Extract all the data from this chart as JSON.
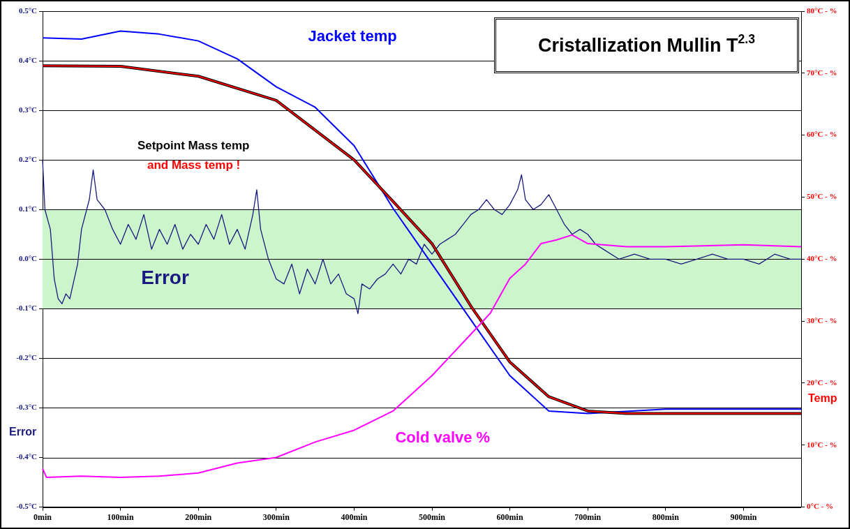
{
  "chart_data": {
    "type": "line",
    "title": "Cristallization Mullin T$^{2.3}$",
    "ylabel": "Error",
    "y2label": "Temp",
    "xlim": [
      0,
      974
    ],
    "xticks": [
      {
        "value": 0,
        "label": "0min"
      },
      {
        "value": 100,
        "label": "100min"
      },
      {
        "value": 200,
        "label": "200min"
      },
      {
        "value": 300,
        "label": "300min"
      },
      {
        "value": 400,
        "label": "400min"
      },
      {
        "value": 500,
        "label": "500min"
      },
      {
        "value": 600,
        "label": "600min"
      },
      {
        "value": 700,
        "label": "700min"
      },
      {
        "value": 800,
        "label": "800min"
      },
      {
        "value": 900,
        "label": "900min"
      }
    ],
    "ylim": [
      -0.5,
      0.5
    ],
    "yticks": [
      {
        "value": -0.5,
        "label": "-0.5°C"
      },
      {
        "value": -0.4,
        "label": "-0.4°C"
      },
      {
        "value": -0.3,
        "label": "-0.3°C"
      },
      {
        "value": -0.2,
        "label": "-0.2°C"
      },
      {
        "value": -0.1,
        "label": "-0.1°C"
      },
      {
        "value": 0,
        "label": "0.0°C"
      },
      {
        "value": 0.1,
        "label": "0.1°C"
      },
      {
        "value": 0.2,
        "label": "0.2°C"
      },
      {
        "value": 0.3,
        "label": "0.3°C"
      },
      {
        "value": 0.4,
        "label": "0.4°C"
      },
      {
        "value": 0.5,
        "label": "0.5°C"
      }
    ],
    "y2lim": [
      0,
      80
    ],
    "y2ticks": [
      {
        "value": 0,
        "label": "0°C - %"
      },
      {
        "value": 10,
        "label": "10°C - %"
      },
      {
        "value": 20,
        "label": "20°C - %"
      },
      {
        "value": 30,
        "label": "30°C - %"
      },
      {
        "value": 40,
        "label": "40°C - %"
      },
      {
        "value": 50,
        "label": "50°C - %"
      },
      {
        "value": 60,
        "label": "60°C - %"
      },
      {
        "value": 70,
        "label": "70°C - %"
      },
      {
        "value": 80,
        "label": "80°C - %"
      }
    ],
    "grid": "y",
    "legend": false,
    "marker": "none",
    "line_style": "solid",
    "bands": [
      {
        "axis": "y",
        "from": -0.1,
        "to": 0.1,
        "color": "#ccf5cc"
      }
    ],
    "series": [
      {
        "name": "Error",
        "color": "#1a1a80",
        "axis": "y",
        "x": [
          0,
          3,
          10,
          15,
          20,
          25,
          30,
          35,
          45,
          50,
          60,
          65,
          70,
          80,
          90,
          100,
          110,
          120,
          130,
          140,
          150,
          160,
          170,
          180,
          190,
          200,
          210,
          220,
          230,
          240,
          250,
          260,
          270,
          275,
          280,
          290,
          300,
          310,
          320,
          330,
          340,
          350,
          360,
          370,
          380,
          390,
          400,
          405,
          410,
          420,
          430,
          440,
          450,
          460,
          470,
          480,
          490,
          500,
          510,
          520,
          530,
          540,
          550,
          560,
          570,
          580,
          590,
          600,
          610,
          615,
          620,
          630,
          640,
          650,
          660,
          670,
          680,
          690,
          700,
          710,
          720,
          740,
          760,
          780,
          800,
          820,
          840,
          860,
          880,
          900,
          920,
          940,
          960,
          974
        ],
        "values": [
          0.2,
          0.1,
          0.06,
          -0.04,
          -0.08,
          -0.09,
          -0.07,
          -0.08,
          -0.01,
          0.06,
          0.12,
          0.18,
          0.12,
          0.1,
          0.06,
          0.03,
          0.07,
          0.04,
          0.09,
          0.02,
          0.06,
          0.03,
          0.07,
          0.02,
          0.05,
          0.03,
          0.07,
          0.04,
          0.09,
          0.03,
          0.06,
          0.02,
          0.09,
          0.14,
          0.06,
          0,
          -0.04,
          -0.05,
          -0.01,
          -0.07,
          -0.02,
          -0.05,
          0,
          -0.05,
          -0.03,
          -0.07,
          -0.08,
          -0.11,
          -0.05,
          -0.06,
          -0.04,
          -0.03,
          -0.01,
          -0.03,
          0,
          -0.01,
          0.03,
          0.01,
          0.03,
          0.04,
          0.05,
          0.07,
          0.09,
          0.1,
          0.12,
          0.1,
          0.09,
          0.11,
          0.14,
          0.17,
          0.12,
          0.1,
          0.11,
          0.13,
          0.1,
          0.07,
          0.05,
          0.06,
          0.05,
          0.03,
          0.02,
          0,
          0.01,
          0,
          0,
          -0.01,
          0,
          0.01,
          0,
          0,
          -0.01,
          0.01,
          0,
          0
        ]
      },
      {
        "name": "Jacket temp",
        "color": "#0000ff",
        "axis": "y2",
        "x": [
          0,
          50,
          100,
          150,
          200,
          250,
          300,
          350,
          400,
          450,
          500,
          550,
          600,
          650,
          700,
          800,
          900,
          974
        ],
        "values": [
          75.7,
          75.5,
          76.8,
          76.3,
          75.2,
          72.3,
          67.8,
          64.5,
          58.3,
          48.2,
          39.2,
          30.2,
          21.2,
          15.5,
          15.1,
          15.8,
          15.8,
          15.8
        ]
      },
      {
        "name": "Setpoint Mass temp",
        "color": "#000000",
        "axis": "y2",
        "x": [
          0,
          100,
          200,
          300,
          400,
          450,
          500,
          550,
          600,
          650,
          700,
          750,
          850,
          974
        ],
        "values": [
          71.2,
          71.1,
          69.5,
          65.6,
          56.0,
          49.3,
          42.5,
          32.4,
          23.4,
          17.8,
          15.5,
          15.1,
          15.1,
          15.1
        ]
      },
      {
        "name": "and Mass temp !",
        "color": "#ff0000",
        "axis": "y2",
        "x": [
          0,
          100,
          200,
          300,
          400,
          450,
          500,
          550,
          600,
          650,
          700,
          750,
          850,
          974
        ],
        "values": [
          71.2,
          71.1,
          69.5,
          65.6,
          56.0,
          49.3,
          42.5,
          32.4,
          23.4,
          17.8,
          15.5,
          15.1,
          15.1,
          15.1
        ]
      },
      {
        "name": "Cold valve %",
        "color": "#ff00ff",
        "axis": "y2",
        "x": [
          0,
          5,
          50,
          100,
          150,
          200,
          250,
          300,
          350,
          400,
          450,
          500,
          550,
          575,
          600,
          620,
          640,
          660,
          680,
          700,
          750,
          800,
          900,
          974
        ],
        "values": [
          6.2,
          4.8,
          5.0,
          4.8,
          5.0,
          5.5,
          7.1,
          8.0,
          10.5,
          12.4,
          15.5,
          21.2,
          27.9,
          31.3,
          36.9,
          39.2,
          42.5,
          43.1,
          43.9,
          42.5,
          42.0,
          42.0,
          42.3,
          42.0
        ]
      }
    ]
  }
}
